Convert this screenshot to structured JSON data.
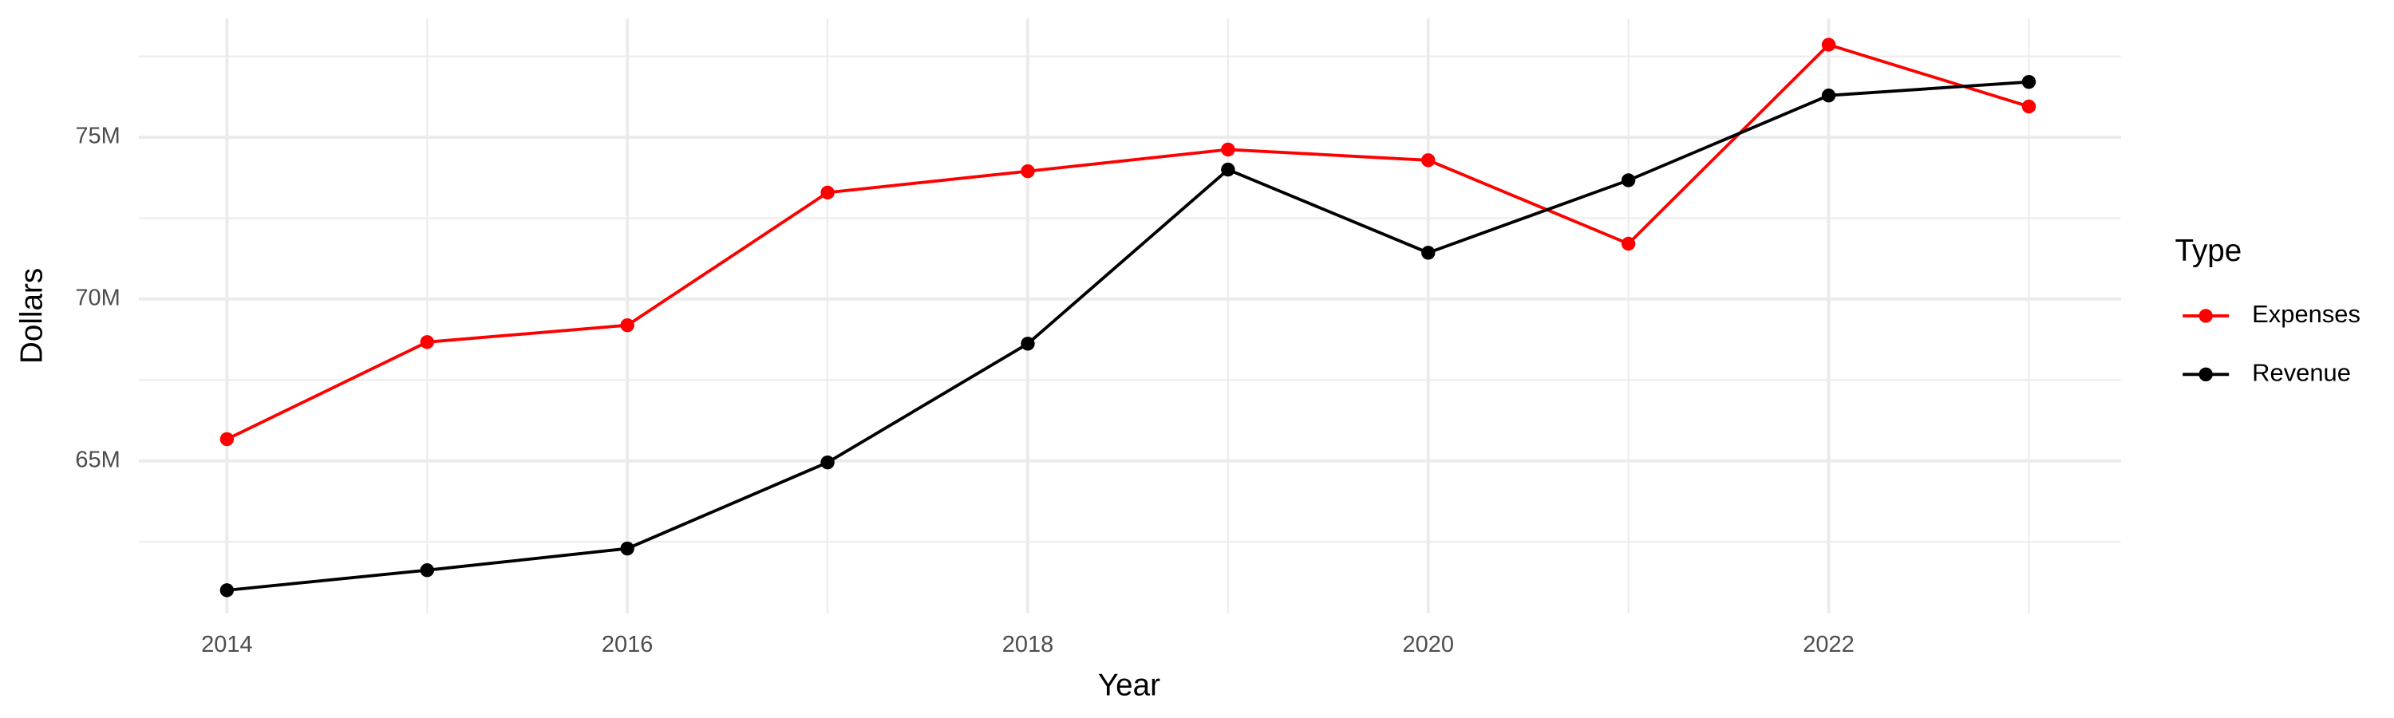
{
  "chart_data": {
    "type": "line",
    "x_label": "Year",
    "y_label": "Dollars",
    "legend_title": "Type",
    "legend_position": "right",
    "grid": true,
    "x": [
      2014,
      2015,
      2016,
      2017,
      2018,
      2019,
      2020,
      2021,
      2022,
      2023
    ],
    "series": [
      {
        "name": "Expenses",
        "color": "#ff0000",
        "values": [
          65670000,
          68670000,
          69190000,
          73290000,
          73950000,
          74620000,
          74290000,
          71710000,
          77860000,
          75950000
        ]
      },
      {
        "name": "Revenue",
        "color": "#000000",
        "values": [
          61000000,
          61620000,
          62290000,
          64950000,
          68620000,
          74000000,
          71430000,
          73670000,
          76290000,
          76710000
        ]
      }
    ],
    "xlim": [
      2013.56,
      2023.46
    ],
    "xticks": [
      2014,
      2016,
      2018,
      2020,
      2022
    ],
    "x_minor_ticks": [
      2015,
      2017,
      2019,
      2021,
      2023
    ],
    "ylim": [
      60290000,
      78670000
    ],
    "yticks": [
      {
        "value": 65000000,
        "label": "65M"
      },
      {
        "value": 70000000,
        "label": "70M"
      },
      {
        "value": 75000000,
        "label": "75M"
      }
    ],
    "y_minor_ticks": [
      62500000,
      67500000,
      72500000,
      77500000
    ]
  }
}
